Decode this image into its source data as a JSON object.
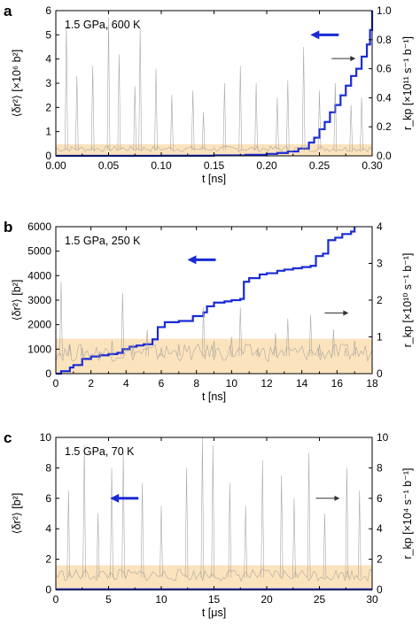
{
  "chart_data": [
    {
      "type": "line",
      "panel_label": "a",
      "annotation": "1.5 GPa, 600 K",
      "xlabel": "t [ns]",
      "ylabel": "⟨δr²⟩ [×10⁶ b²]",
      "y2label": "r_kp [×10¹¹ s⁻¹ b⁻¹]",
      "xlim": [
        0,
        0.3
      ],
      "ylim": [
        0,
        6
      ],
      "y2lim": [
        0,
        1.0
      ],
      "xticks": [
        "0.00",
        "0.05",
        "0.10",
        "0.15",
        "0.20",
        "0.25",
        "0.30"
      ],
      "yticks": [
        "0",
        "1",
        "2",
        "3",
        "4",
        "5",
        "6"
      ],
      "y2ticks": [
        "0.0",
        "0.2",
        "0.4",
        "0.6",
        "0.8",
        "1.0"
      ],
      "band_y2": [
        0,
        0.08
      ],
      "series": [
        {
          "axis": "left",
          "color": "#1a2bd6",
          "x": [
            0.0,
            0.05,
            0.1,
            0.15,
            0.18,
            0.2,
            0.21,
            0.22,
            0.23,
            0.24,
            0.245,
            0.25,
            0.255,
            0.26,
            0.265,
            0.27,
            0.275,
            0.28,
            0.285,
            0.29,
            0.295,
            0.298,
            0.3
          ],
          "y": [
            0.0,
            0.0,
            0.005,
            0.02,
            0.04,
            0.08,
            0.12,
            0.18,
            0.3,
            0.55,
            0.75,
            1.1,
            1.4,
            1.8,
            2.1,
            2.5,
            2.9,
            3.3,
            3.6,
            4.1,
            4.6,
            5.2,
            6.0
          ]
        },
        {
          "axis": "right",
          "color": "#9a9a9a",
          "x": [
            0.01,
            0.02,
            0.035,
            0.05,
            0.06,
            0.075,
            0.08,
            0.095,
            0.11,
            0.13,
            0.14,
            0.16,
            0.175,
            0.19,
            0.21,
            0.22,
            0.235,
            0.25,
            0.265,
            0.28,
            0.29
          ],
          "y": [
            0.9,
            0.55,
            0.62,
            0.95,
            0.7,
            0.48,
            0.88,
            0.6,
            0.42,
            0.45,
            0.3,
            0.5,
            0.62,
            0.5,
            0.4,
            0.52,
            0.75,
            0.45,
            0.5,
            0.35,
            0.4
          ]
        }
      ],
      "arrows": [
        {
          "axis": "left",
          "direction": "left",
          "x": 0.27,
          "y": 5.0
        },
        {
          "axis": "right",
          "direction": "right",
          "x": 0.27,
          "y": 0.67
        }
      ]
    },
    {
      "type": "line",
      "panel_label": "b",
      "annotation": "1.5 GPa, 250 K",
      "xlabel": "t [ns]",
      "ylabel": "⟨δr²⟩ [b²]",
      "y2label": "r_kp [×10¹⁰ s⁻¹ b⁻¹]",
      "xlim": [
        0,
        18
      ],
      "ylim": [
        0,
        6000
      ],
      "y2lim": [
        0,
        4
      ],
      "xticks": [
        "0",
        "2",
        "4",
        "6",
        "8",
        "10",
        "12",
        "14",
        "16",
        "18"
      ],
      "yticks": [
        "0",
        "1000",
        "2000",
        "3000",
        "4000",
        "5000",
        "6000"
      ],
      "y2ticks": [
        "0",
        "1",
        "2",
        "3",
        "4"
      ],
      "band_y2": [
        0,
        0.95
      ],
      "series": [
        {
          "axis": "left",
          "color": "#1a2bd6",
          "x": [
            0,
            0.3,
            0.8,
            1.0,
            1.5,
            2.0,
            2.5,
            3.0,
            3.5,
            3.8,
            4.2,
            4.6,
            5.0,
            5.5,
            5.8,
            6.2,
            7.0,
            7.8,
            8.4,
            8.6,
            9.0,
            9.6,
            10.0,
            10.5,
            10.7,
            11.0,
            11.6,
            12.0,
            12.6,
            13.0,
            13.5,
            14.0,
            14.5,
            14.8,
            15.2,
            15.5,
            15.9,
            16.3,
            16.8,
            17.0
          ],
          "y": [
            0,
            100,
            250,
            350,
            600,
            700,
            750,
            800,
            850,
            1000,
            1100,
            1150,
            1200,
            1400,
            1900,
            2100,
            2150,
            2350,
            2500,
            2750,
            2900,
            2950,
            3000,
            3050,
            3750,
            3900,
            4050,
            4100,
            4200,
            4250,
            4300,
            4350,
            4400,
            4800,
            4900,
            5450,
            5550,
            5700,
            5800,
            6000
          ]
        },
        {
          "axis": "right",
          "color": "#9a9a9a",
          "x": [
            0.3,
            0.8,
            1.5,
            2.5,
            3.2,
            3.8,
            4.4,
            5.2,
            6.0,
            7.0,
            8.4,
            9.0,
            10.0,
            10.5,
            11.5,
            12.5,
            13.2,
            14.5,
            15.0,
            15.8,
            16.5,
            17.0
          ],
          "y": [
            2.5,
            0.8,
            0.7,
            0.6,
            0.9,
            2.2,
            0.8,
            1.2,
            0.7,
            0.8,
            1.8,
            0.9,
            1.0,
            1.8,
            0.7,
            1.1,
            1.5,
            1.6,
            0.8,
            1.2,
            0.7,
            0.9
          ]
        }
      ],
      "arrows": [
        {
          "axis": "left",
          "direction": "left",
          "x": 9.2,
          "y": 4650
        },
        {
          "axis": "right",
          "direction": "right",
          "x": 15.8,
          "y": 1.65
        }
      ]
    },
    {
      "type": "line",
      "panel_label": "c",
      "annotation": "1.5 GPa, 70 K",
      "xlabel": "t [μs]",
      "ylabel": "⟨δr²⟩ [b²]",
      "y2label": "r_kp [×10⁴ s⁻¹ b⁻¹]",
      "xlim": [
        0,
        30
      ],
      "ylim": [
        0,
        10
      ],
      "y2lim": [
        0,
        10
      ],
      "xticks": [
        "0",
        "5",
        "10",
        "15",
        "20",
        "25",
        "30"
      ],
      "yticks": [
        "0",
        "2",
        "4",
        "6",
        "8",
        "10"
      ],
      "y2ticks": [
        "0",
        "2",
        "4",
        "6",
        "8",
        "10"
      ],
      "band_y2": [
        0,
        1.6
      ],
      "series": [
        {
          "axis": "left",
          "color": "#1a2bd6",
          "x": [
            0,
            30
          ],
          "y": [
            0.02,
            0.02
          ]
        },
        {
          "axis": "right",
          "color": "#9a9a9a",
          "x": [
            1.2,
            2.7,
            4.0,
            5.3,
            6.4,
            8.2,
            10.0,
            12.4,
            13.9,
            14.9,
            16.5,
            18.0,
            19.6,
            21.4,
            22.6,
            24.0,
            25.5,
            27.6,
            28.8
          ],
          "y": [
            6.5,
            9.5,
            5.0,
            8.0,
            9.0,
            7.0,
            5.5,
            8.0,
            10.0,
            9.5,
            7.0,
            5.5,
            8.5,
            7.5,
            6.0,
            9.0,
            5.0,
            8.0,
            6.5
          ]
        }
      ],
      "arrows": [
        {
          "axis": "left",
          "direction": "left",
          "x": 8.0,
          "y": 6.0
        },
        {
          "axis": "right",
          "direction": "right",
          "x": 25.5,
          "y": 6.0
        }
      ]
    }
  ]
}
